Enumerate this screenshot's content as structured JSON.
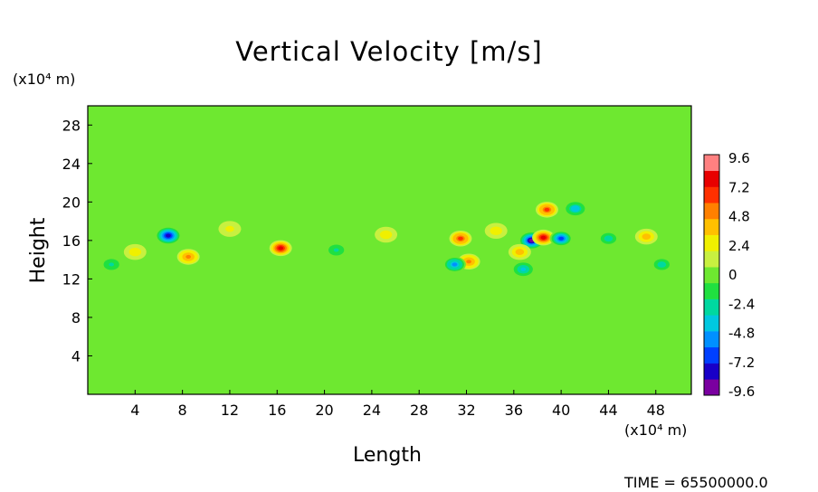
{
  "chart_data": {
    "type": "heatmap",
    "title": "Vertical Velocity [m/s]",
    "xlabel": "Length",
    "ylabel": "Height",
    "x_unit": "(x10⁴ m)",
    "y_unit": "(x10⁴ m)",
    "x_ticks": [
      "4",
      "8",
      "12",
      "16",
      "20",
      "24",
      "28",
      "32",
      "36",
      "40",
      "44",
      "48"
    ],
    "y_ticks": [
      "4",
      "8",
      "12",
      "16",
      "20",
      "24",
      "28"
    ],
    "xlim": [
      0,
      51
    ],
    "ylim": [
      0,
      30
    ],
    "colorbar": {
      "labels": [
        "9.6",
        "7.2",
        "4.8",
        "2.4",
        "0",
        "-2.4",
        "-4.8",
        "-7.2",
        "-9.6"
      ],
      "range": [
        -9.6,
        9.6
      ],
      "colors": [
        "#7a00a0",
        "#1800c8",
        "#0040ff",
        "#0090ff",
        "#00c8e0",
        "#00d8a0",
        "#20e040",
        "#6ee830",
        "#c8f040",
        "#f0f000",
        "#ffc000",
        "#ff8000",
        "#ff3000",
        "#e80000",
        "#ff8080"
      ]
    },
    "background_value": 0.6,
    "features": [
      {
        "x": 6.8,
        "y": 16.5,
        "value": -7.8
      },
      {
        "x": 8.5,
        "y": 14.3,
        "value": 4.8
      },
      {
        "x": 16.3,
        "y": 15.2,
        "value": 8.0
      },
      {
        "x": 31.5,
        "y": 16.2,
        "value": 6.2
      },
      {
        "x": 32.2,
        "y": 13.8,
        "value": 5.0
      },
      {
        "x": 31.0,
        "y": 13.5,
        "value": -5.0
      },
      {
        "x": 37.5,
        "y": 16.0,
        "value": -8.8
      },
      {
        "x": 38.5,
        "y": 16.3,
        "value": 7.6
      },
      {
        "x": 38.8,
        "y": 19.2,
        "value": 6.4
      },
      {
        "x": 40.0,
        "y": 16.2,
        "value": -6.4
      },
      {
        "x": 41.2,
        "y": 19.3,
        "value": -4.0
      },
      {
        "x": 36.5,
        "y": 14.8,
        "value": 4.2
      },
      {
        "x": 36.8,
        "y": 13.0,
        "value": -3.6
      },
      {
        "x": 47.2,
        "y": 16.4,
        "value": 4.4
      },
      {
        "x": 25.2,
        "y": 16.6,
        "value": 2.8
      },
      {
        "x": 4.0,
        "y": 14.8,
        "value": 2.6
      },
      {
        "x": 2.0,
        "y": 13.5,
        "value": -2.4
      },
      {
        "x": 44.0,
        "y": 16.2,
        "value": -2.8
      },
      {
        "x": 48.5,
        "y": 13.5,
        "value": -2.6
      },
      {
        "x": 34.5,
        "y": 17.0,
        "value": 3.0
      },
      {
        "x": 12.0,
        "y": 17.2,
        "value": 2.4
      },
      {
        "x": 21.0,
        "y": 15.0,
        "value": -2.2
      }
    ]
  },
  "time_label": "TIME = 65500000.0"
}
